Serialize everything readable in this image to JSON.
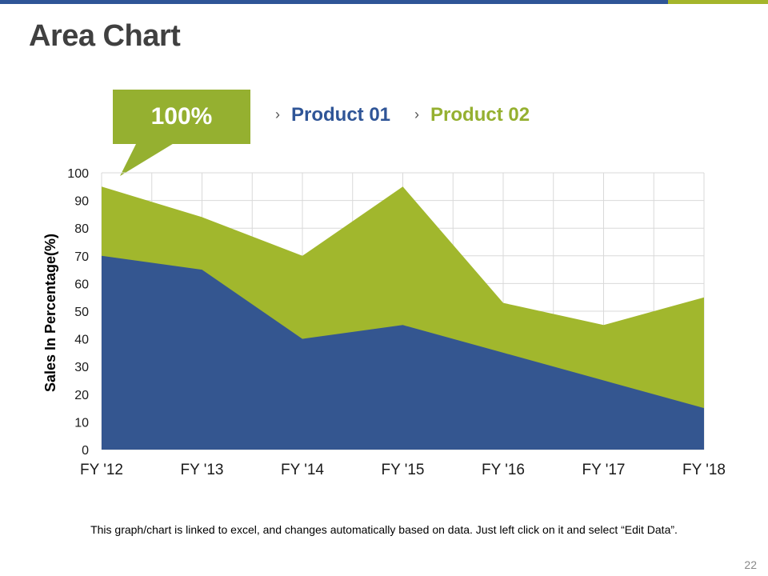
{
  "slide": {
    "title": "Area Chart",
    "callout": "100%",
    "footnote": "This graph/chart is linked to excel, and changes automatically based on data. Just left click on it and select “Edit Data”.",
    "page_number": "22"
  },
  "legend": {
    "arrow": "›",
    "items": [
      {
        "label": "Product 01",
        "color": "#2f5597"
      },
      {
        "label": "Product 02",
        "color": "#95b030"
      }
    ]
  },
  "colors": {
    "accent_blue": "#2f5597",
    "accent_green": "#a4b52b",
    "series_blue": "#345690",
    "series_green": "#a1b72d",
    "grid": "#d9d9d9"
  },
  "chart_data": {
    "type": "area",
    "title": "",
    "xlabel": "",
    "ylabel": "Sales In Percentage(%)",
    "categories": [
      "FY '12",
      "FY '13",
      "FY '14",
      "FY '15",
      "FY '16",
      "FY '17",
      "FY '18"
    ],
    "ylim": [
      0,
      100
    ],
    "yticks": [
      0,
      10,
      20,
      30,
      40,
      50,
      60,
      70,
      80,
      90,
      100
    ],
    "grid": true,
    "series": [
      {
        "name": "Product 02",
        "values": [
          95,
          84,
          70,
          95,
          53,
          45,
          55
        ]
      },
      {
        "name": "Product 01",
        "values": [
          70,
          65,
          40,
          45,
          35,
          25,
          15
        ]
      }
    ]
  }
}
